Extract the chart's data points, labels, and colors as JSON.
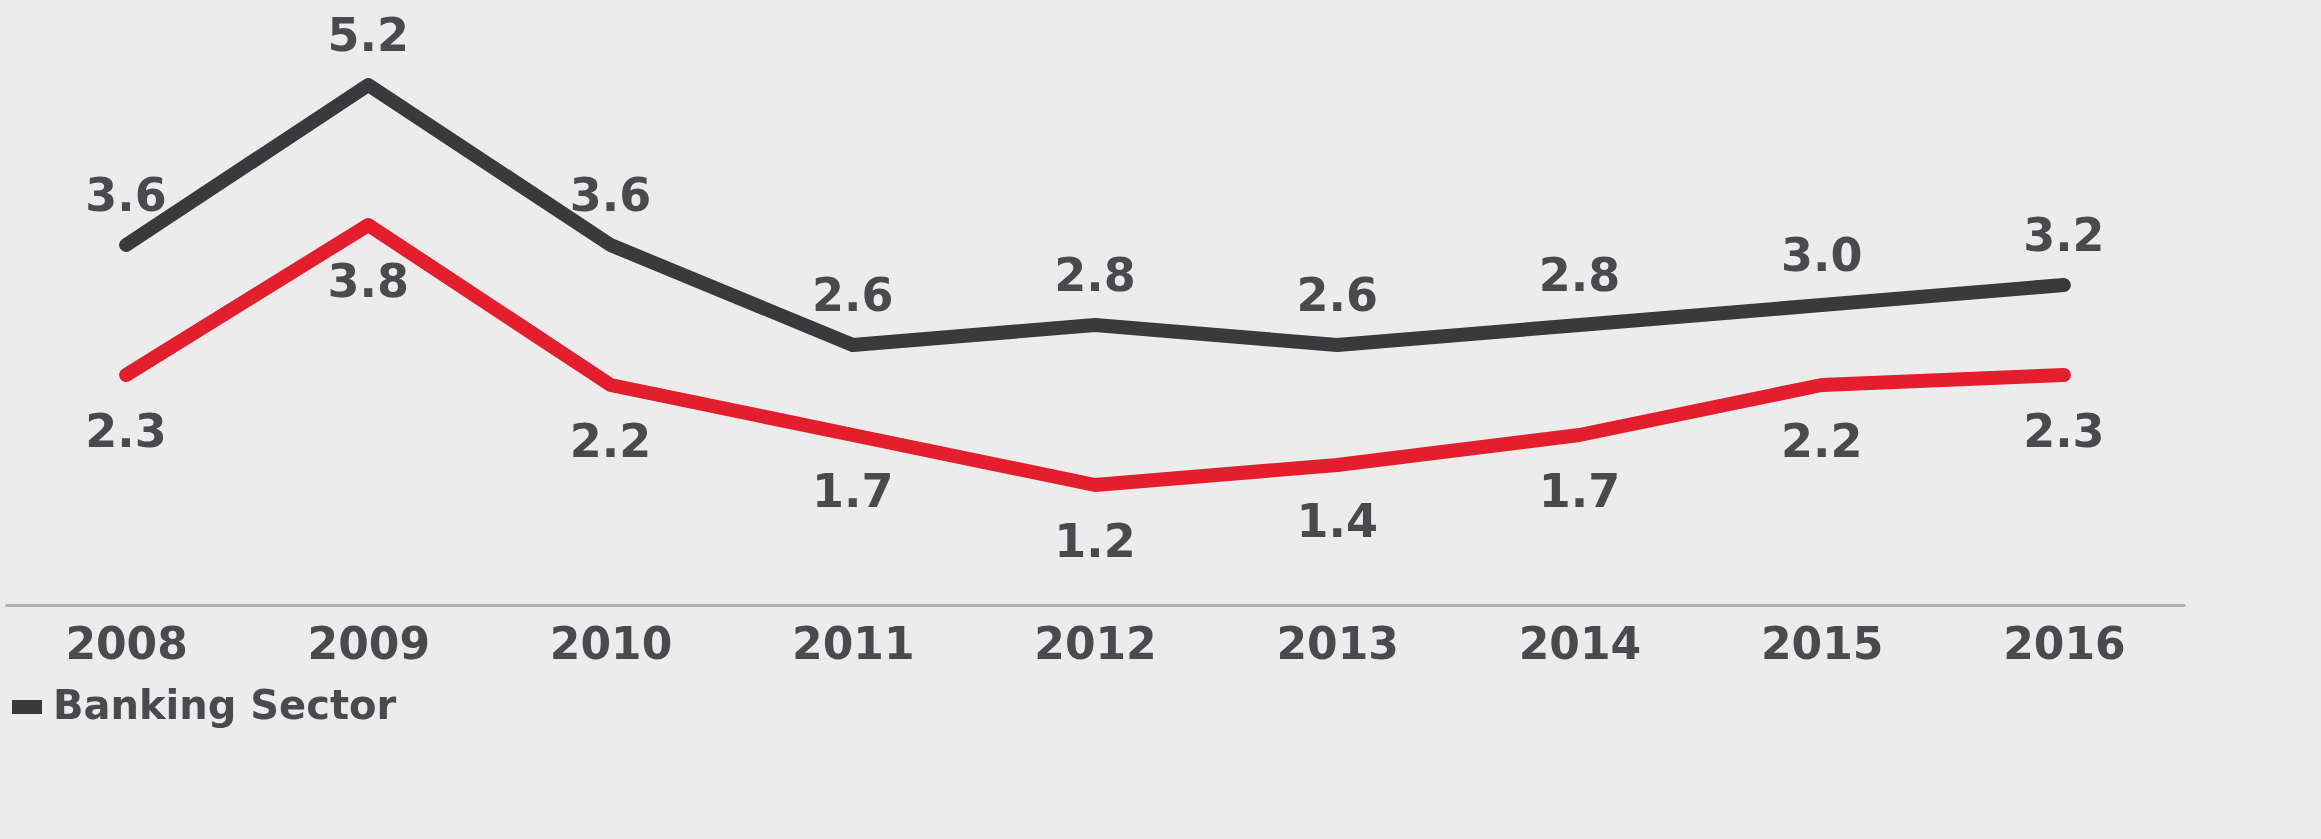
{
  "chart_data": {
    "type": "line",
    "categories": [
      "2008",
      "2009",
      "2010",
      "2011",
      "2012",
      "2013",
      "2014",
      "2015",
      "2016"
    ],
    "series": [
      {
        "name": "Banking Sector",
        "color": "#3a3a3c",
        "values": [
          3.6,
          5.2,
          3.6,
          2.6,
          2.8,
          2.6,
          2.8,
          3.0,
          3.2
        ],
        "value_labels": [
          "3.6",
          "5.2",
          "3.6",
          "2.6",
          "2.8",
          "2.6",
          "2.8",
          "3.0",
          "3.2"
        ]
      },
      {
        "color": "#e31e2d",
        "values": [
          2.3,
          3.8,
          2.2,
          1.7,
          1.2,
          1.4,
          1.7,
          2.2,
          2.3
        ],
        "value_labels": [
          "2.3",
          "3.8",
          "2.2",
          "1.7",
          "1.2",
          "1.4",
          "1.7",
          "2.2",
          "2.3"
        ]
      }
    ],
    "legend": "bottom",
    "grid": false,
    "marker": "none",
    "line_style": "solid"
  }
}
